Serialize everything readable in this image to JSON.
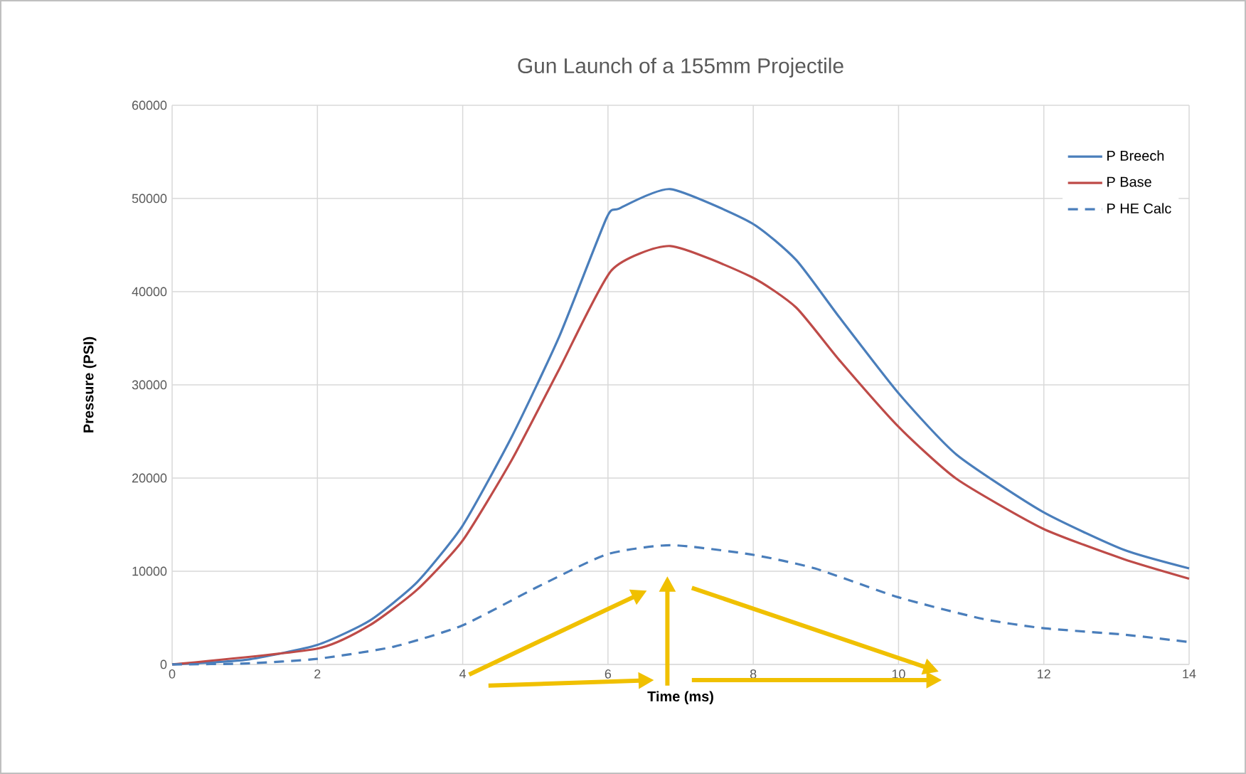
{
  "chart_data": {
    "type": "line",
    "title": "Gun Launch of a 155mm Projectile",
    "xlabel": "Time (ms)",
    "ylabel": "Pressure (PSI)",
    "xlim": [
      0,
      14
    ],
    "xticks": [
      0,
      2,
      4,
      6,
      8,
      10,
      12,
      14
    ],
    "ylim": [
      0,
      60000
    ],
    "yticks": [
      0,
      10000,
      20000,
      30000,
      40000,
      50000,
      60000
    ],
    "grid": true,
    "legend": "top right",
    "marker": "none",
    "series": [
      {
        "name": "P Breech",
        "color": "#4a7ebb",
        "line_style": "solid",
        "x": [
          0,
          1.02,
          2,
          2.72,
          3.37,
          4,
          4.68,
          5.33,
          5.98,
          6.15,
          6.86,
          7.97,
          8.59,
          9.18,
          10,
          10.8,
          11.98,
          13.1,
          14
        ],
        "values": [
          0,
          500,
          2100,
          4700,
          8800,
          14900,
          24500,
          35200,
          47900,
          48900,
          51000,
          47400,
          43400,
          37300,
          29100,
          22500,
          16400,
          12300,
          10300
        ]
      },
      {
        "name": "P Base",
        "color": "#be4b48",
        "line_style": "solid",
        "x": [
          0,
          2,
          2.72,
          3.37,
          4,
          4.68,
          5.33,
          6.05,
          6.86,
          7.97,
          8.59,
          9.18,
          10,
          10.8,
          11.98,
          13.1,
          14
        ],
        "values": [
          0,
          1700,
          4200,
          8000,
          13300,
          22000,
          31700,
          42300,
          44900,
          41600,
          38300,
          32700,
          25500,
          19900,
          14600,
          11300,
          9200
        ]
      },
      {
        "name": "P HE Calc",
        "color": "#4a7ebb",
        "line_style": "dashed",
        "x": [
          0,
          1.02,
          2,
          3.05,
          4,
          5,
          5.98,
          6.86,
          7.97,
          8.85,
          10,
          11.15,
          11.98,
          13.1,
          14
        ],
        "values": [
          0,
          100,
          600,
          1900,
          4200,
          8200,
          11800,
          12800,
          11800,
          10300,
          7200,
          4900,
          3900,
          3200,
          2400
        ]
      }
    ]
  }
}
